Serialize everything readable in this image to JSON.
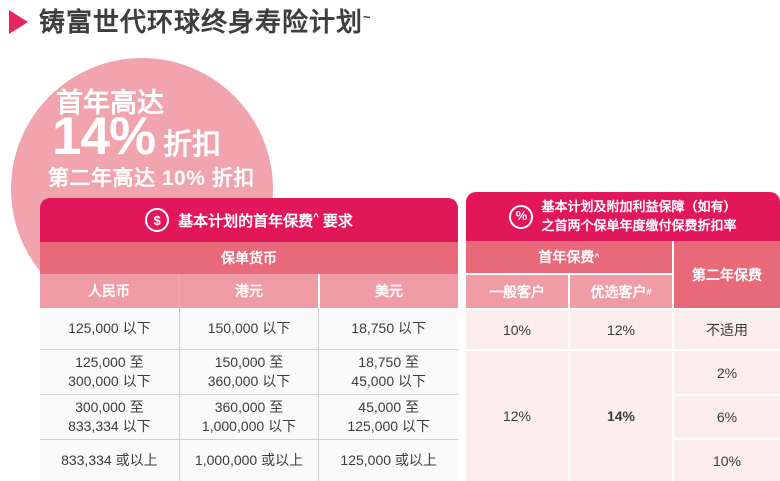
{
  "title": {
    "text": "铸富世代环球终身寿险计划",
    "sup": "~"
  },
  "badge": {
    "line1": "首年高达",
    "highlight": "14%",
    "highlight_suffix": "折扣",
    "line3": "第二年高达 10% 折扣"
  },
  "icons": {
    "dollar": "$",
    "percent": "%"
  },
  "premium_table": {
    "title_prefix": "基本计划的首年保费",
    "title_sup": "^",
    "title_suffix": "要求",
    "subheader": "保单货币",
    "columns": [
      "人民币",
      "港元",
      "美元"
    ],
    "rows": [
      [
        "125,000 以下",
        "150,000 以下",
        "18,750 以下"
      ],
      [
        "125,000 至\n300,000 以下",
        "150,000 至\n360,000 以下",
        "18,750 至\n45,000 以下"
      ],
      [
        "300,000 至\n833,334 以下",
        "360,000 至\n1,000,000 以下",
        "45,000 至\n125,000 以下"
      ],
      [
        "833,334 或以上",
        "1,000,000 或以上",
        "125,000 或以上"
      ]
    ]
  },
  "discount_table": {
    "title_line1": "基本计划及附加利益保障（如有）",
    "title_line2": "之首两个保单年度缴付保费折扣率",
    "first_year_label": "首年保费",
    "first_year_sup": "^",
    "second_year_label": "第二年保费",
    "client_general": "一般客户",
    "client_preferred": "优选客户",
    "client_preferred_sup": "#",
    "row1": {
      "general": "10%",
      "preferred": "12%",
      "second_year": "不适用"
    },
    "merged_general": "12%",
    "merged_preferred": "14%",
    "second_year_values": [
      "2%",
      "6%",
      "10%"
    ]
  },
  "colors": {
    "crimson": "#E2175A",
    "rose": "#E7697A",
    "light_rose": "#F09CA6",
    "pale_pink": "#FCEEEC",
    "circle_pink": "#F1A4AE"
  }
}
